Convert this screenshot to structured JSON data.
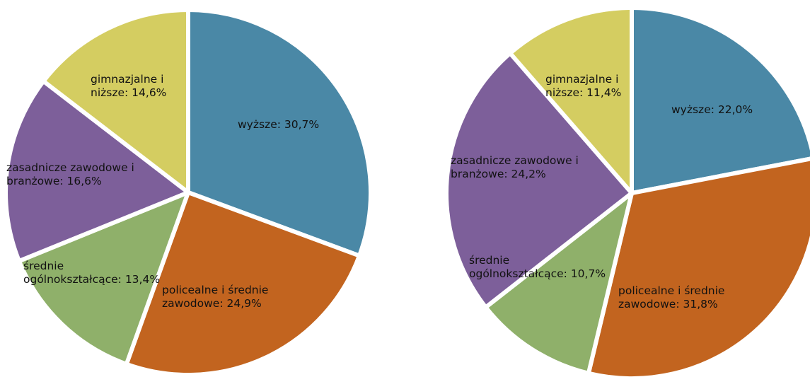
{
  "chart_data": [
    {
      "type": "pie",
      "title": "",
      "slices": [
        {
          "label_lines": [
            "wyższe: 30,7%"
          ],
          "value": 30.7,
          "color": "#4a88a6"
        },
        {
          "label_lines": [
            "policealne i średnie",
            "zawodowe: 24,9%"
          ],
          "value": 24.9,
          "color": "#c2641f"
        },
        {
          "label_lines": [
            "średnie",
            "ogólnokształcące: 13,4%"
          ],
          "value": 13.4,
          "color": "#8fb06a"
        },
        {
          "label_lines": [
            "zasadnicze zawodowe i",
            "branżowe: 16,6%"
          ],
          "value": 16.6,
          "color": "#7d5f9a"
        },
        {
          "label_lines": [
            "gimnazjalne i",
            "niższe: 14,6%"
          ],
          "value": 14.6,
          "color": "#d4cd61"
        }
      ]
    },
    {
      "type": "pie",
      "title": "",
      "slices": [
        {
          "label_lines": [
            "wyższe: 22,0%"
          ],
          "value": 22.0,
          "color": "#4a88a6"
        },
        {
          "label_lines": [
            "policealne i średnie",
            "zawodowe: 31,8%"
          ],
          "value": 31.8,
          "color": "#c2641f"
        },
        {
          "label_lines": [
            "średnie",
            "ogólnokształcące: 10,7%"
          ],
          "value": 10.7,
          "color": "#8fb06a"
        },
        {
          "label_lines": [
            "zasadnicze zawodowe i",
            "branżowe: 24,2%"
          ],
          "value": 24.2,
          "color": "#7d5f9a"
        },
        {
          "label_lines": [
            "gimnazjalne i",
            "niższe: 11,4%"
          ],
          "value": 11.4,
          "color": "#d4cd61"
        }
      ]
    }
  ]
}
